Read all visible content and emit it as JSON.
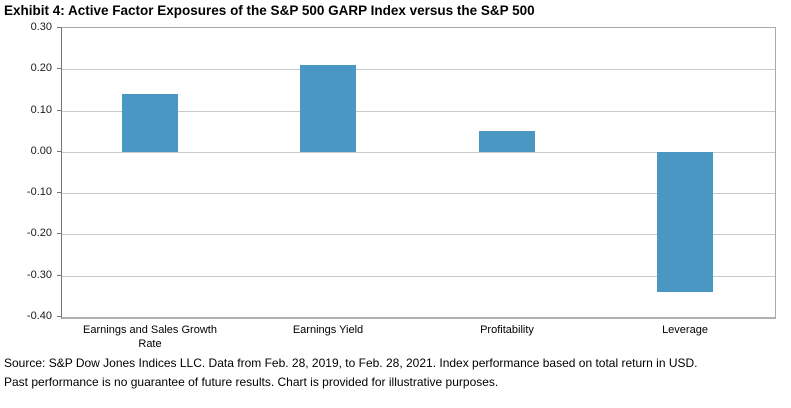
{
  "title": "Exhibit 4: Active Factor Exposures of the S&P 500 GARP Index versus the S&P 500",
  "footer": {
    "line1": "Source: S&P Dow Jones Indices LLC. Data from Feb. 28, 2019, to Feb. 28, 2021. Index performance based on total return in USD.",
    "line2": "Past performance is no guarantee of future results. Chart is provided for illustrative purposes."
  },
  "colors": {
    "bar": "#4b97c3",
    "gridline": "#c9c9c9",
    "axis": "#767676",
    "plot_border": "#a9a9a9",
    "text": "#000000"
  },
  "chart_data": {
    "type": "bar",
    "title": "Exhibit 4: Active Factor Exposures of the S&P 500 GARP Index versus the S&P 500",
    "categories": [
      "Earnings and Sales Growth Rate",
      "Earnings Yield",
      "Profitability",
      "Leverage"
    ],
    "values": [
      0.14,
      0.21,
      0.05,
      -0.34
    ],
    "xlabel": "",
    "ylabel": "",
    "ylim": [
      -0.4,
      0.3
    ],
    "ytick_step": 0.1,
    "ytick_labels": [
      "0.30",
      "0.20",
      "0.10",
      "0.00",
      "-0.10",
      "-0.20",
      "-0.30",
      "-0.40"
    ],
    "grid": true,
    "legend_position": "none",
    "bar_color": "#4b97c3"
  }
}
